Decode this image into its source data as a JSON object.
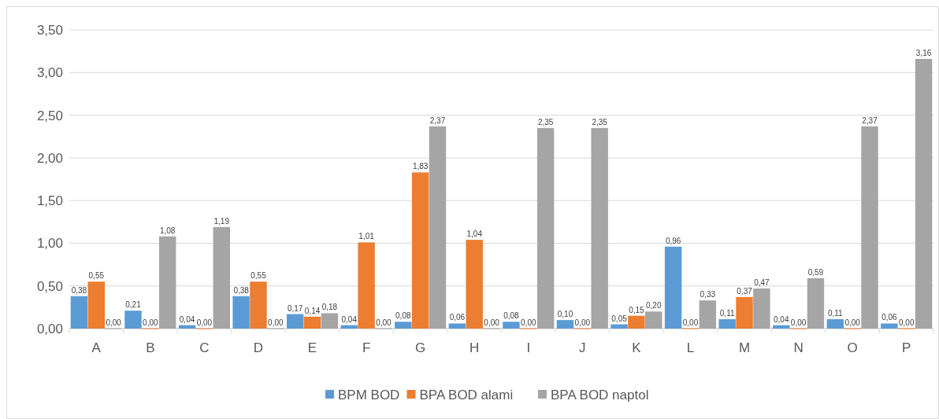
{
  "chart_data": {
    "type": "bar",
    "categories": [
      "A",
      "B",
      "C",
      "D",
      "E",
      "F",
      "G",
      "H",
      "I",
      "J",
      "K",
      "L",
      "M",
      "N",
      "O",
      "P"
    ],
    "series": [
      {
        "name": "BPM BOD",
        "color": "#5b9bd5",
        "values": [
          0.38,
          0.21,
          0.04,
          0.38,
          0.17,
          0.04,
          0.08,
          0.06,
          0.08,
          0.1,
          0.05,
          0.96,
          0.11,
          0.04,
          0.11,
          0.06
        ],
        "value_labels": [
          "0,38",
          "0,21",
          "0,04",
          "0,38",
          "0,17",
          "0,04",
          "0,08",
          "0,06",
          "0,08",
          "0,10",
          "0,05",
          "0,96",
          "0,11",
          "0,04",
          "0,11",
          "0,06"
        ]
      },
      {
        "name": "BPA BOD alami",
        "color": "#ed7d31",
        "values": [
          0.55,
          0,
          0,
          0.55,
          0.14,
          1.01,
          1.83,
          1.04,
          0,
          0,
          0.15,
          0,
          0.37,
          0,
          0,
          0
        ],
        "value_labels": [
          "0,55",
          "0,00",
          "0,00",
          "0,55",
          "0,14",
          "1,01",
          "1,83",
          "1,04",
          "0,00",
          "0,00",
          "0,15",
          "0,00",
          "0,37",
          "0,00",
          "0,00",
          "0,00"
        ]
      },
      {
        "name": "BPA BOD naptol",
        "color": "#a5a5a5",
        "values": [
          0,
          1.08,
          1.19,
          0,
          0.18,
          0,
          2.37,
          0,
          2.35,
          2.35,
          0.2,
          0.33,
          0.47,
          0.59,
          2.37,
          3.16
        ],
        "value_labels": [
          "0,00",
          "1,08",
          "1,19",
          "0,00",
          "0,18",
          "0,00",
          "2,37",
          "0,00",
          "2,35",
          "2,35",
          "0,20",
          "0,33",
          "0,47",
          "0,59",
          "2,37",
          "3,16"
        ]
      }
    ],
    "ylim": [
      0,
      3.5
    ],
    "yticks": [
      {
        "value": 0,
        "label": "0,00"
      },
      {
        "value": 0.5,
        "label": "0,50"
      },
      {
        "value": 1,
        "label": "1,00"
      },
      {
        "value": 1.5,
        "label": "1,50"
      },
      {
        "value": 2,
        "label": "2,00"
      },
      {
        "value": 2.5,
        "label": "2,50"
      },
      {
        "value": 3,
        "label": "3,00"
      },
      {
        "value": 3.5,
        "label": "3,50"
      }
    ],
    "grid": "y",
    "legend": "bottom"
  }
}
